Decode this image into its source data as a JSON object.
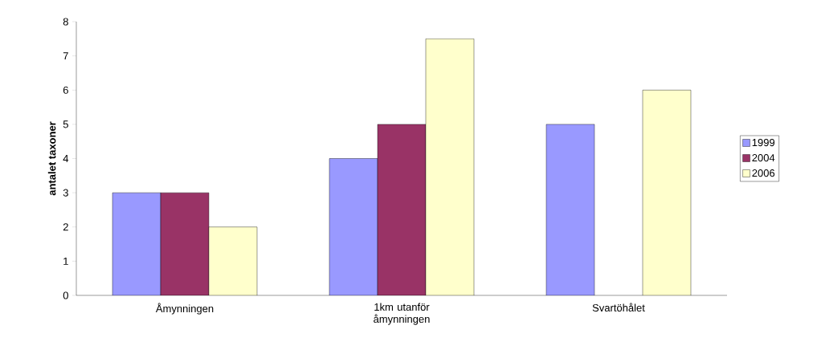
{
  "chart_data": {
    "type": "bar",
    "ylabel": "antalet taxoner",
    "categories": [
      "Åmynningen",
      "1km utanför åmynningen",
      "Svartöhålet"
    ],
    "series": [
      {
        "name": "1999",
        "color": "#9999ff",
        "values": [
          3,
          4,
          5
        ]
      },
      {
        "name": "2004",
        "color": "#993366",
        "values": [
          3,
          5,
          null
        ]
      },
      {
        "name": "2006",
        "color": "#ffffcc",
        "values": [
          2,
          7.5,
          6
        ]
      }
    ],
    "ylim": [
      0,
      8
    ],
    "yticks": [
      0,
      1,
      2,
      3,
      4,
      5,
      6,
      7,
      8
    ],
    "grid": false,
    "legend": "right"
  }
}
